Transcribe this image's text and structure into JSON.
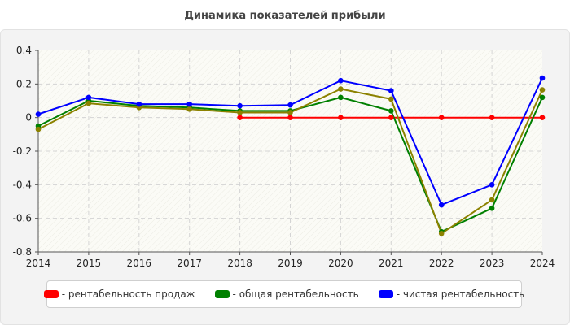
{
  "chart_data": {
    "type": "line",
    "title": "Динамика показателей прибыли",
    "xlabel": "",
    "ylabel": "",
    "x": [
      "2014",
      "2015",
      "2016",
      "2017",
      "2018",
      "2019",
      "2020",
      "2021",
      "2022",
      "2023",
      "2024"
    ],
    "ylim": [
      -0.8,
      0.4
    ],
    "yticks": [
      0.4,
      0.2,
      0,
      -0.2,
      -0.4,
      -0.6,
      -0.8
    ],
    "ytick_labels": [
      "0.4",
      "0.2",
      "0",
      "-0.2",
      "-0.4",
      "-0.6",
      "-0.8"
    ],
    "grid": true,
    "legend_position": "bottom",
    "series": [
      {
        "name": "рентабельность продаж",
        "color": "#ff0000",
        "values": [
          null,
          null,
          null,
          null,
          0.0,
          0.0,
          0.0,
          0.0,
          0.0,
          0.0,
          0.0
        ]
      },
      {
        "name": "общая рентабельность",
        "color": "#008000",
        "values": [
          -0.05,
          0.1,
          0.07,
          0.06,
          0.04,
          0.04,
          0.12,
          0.04,
          -0.68,
          -0.54,
          0.12
        ]
      },
      {
        "name": "",
        "color": "#8c8200",
        "values": [
          -0.07,
          0.085,
          0.06,
          0.05,
          0.03,
          0.03,
          0.17,
          0.11,
          -0.69,
          -0.49,
          0.165
        ]
      },
      {
        "name": "чистая рентабельность",
        "color": "#0000ff",
        "values": [
          0.02,
          0.12,
          0.08,
          0.08,
          0.07,
          0.075,
          0.22,
          0.16,
          -0.52,
          -0.4,
          0.235
        ]
      }
    ]
  },
  "legend": {
    "items": [
      {
        "label": "- рентабельность продаж",
        "color": "#ff0000"
      },
      {
        "label": "- общая рентабельность",
        "color": "#008000"
      },
      {
        "label": "- чистая рентабельность",
        "color": "#0000ff"
      }
    ]
  }
}
